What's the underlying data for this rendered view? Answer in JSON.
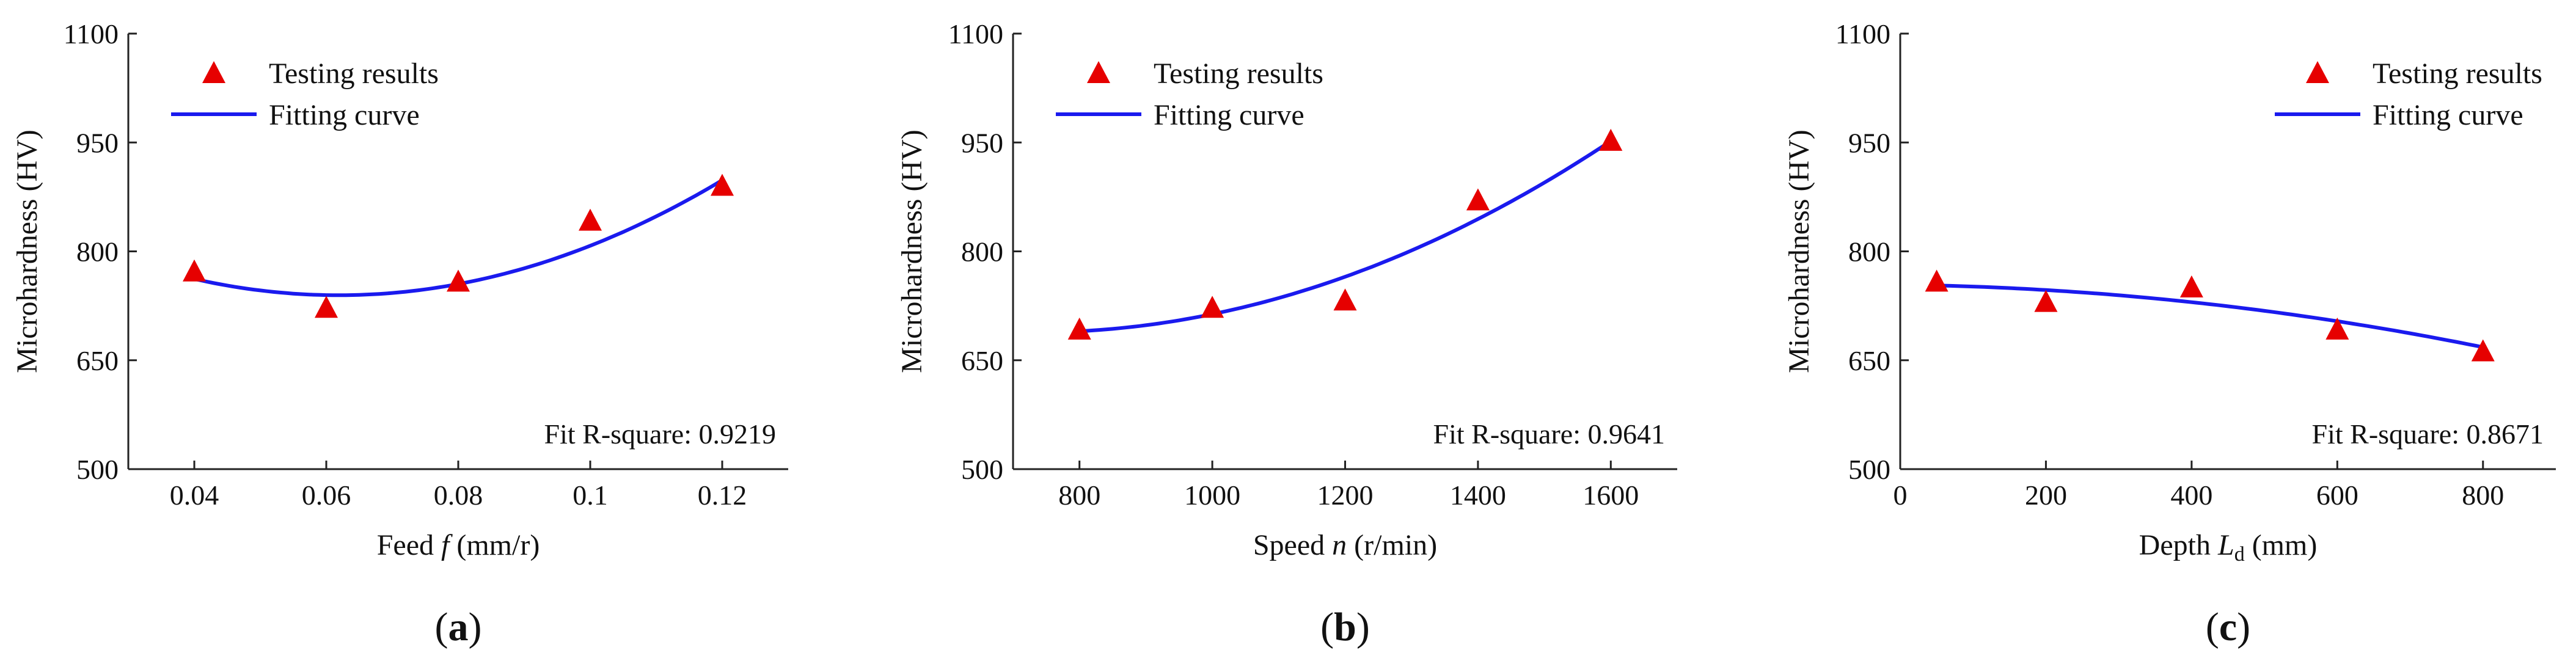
{
  "colors": {
    "marker": "#e60000",
    "curve": "#1a1aee"
  },
  "chart_data": [
    {
      "type": "scatter",
      "panel_label": "a",
      "ylabel": "Microhardness (HV)",
      "xlabel_prefix": "Feed ",
      "xlabel_var": "f",
      "xlabel_sub": "",
      "xlabel_suffix": " (mm/r)",
      "xlim": [
        0.03,
        0.13
      ],
      "ylim": [
        500,
        1100
      ],
      "xticks": [
        0.04,
        0.06,
        0.08,
        0.1,
        0.12
      ],
      "xtick_labels": [
        "0.04",
        "0.06",
        "0.08",
        "0.1",
        "0.12"
      ],
      "yticks": [
        500,
        650,
        800,
        950,
        1100
      ],
      "ytick_labels": [
        "500",
        "650",
        "800",
        "950",
        "1100"
      ],
      "legend": {
        "position": "top-left",
        "marker_label": "Testing results",
        "line_label": "Fitting curve"
      },
      "fit_text": "Fit R-square: 0.9219",
      "series": [
        {
          "name": "Testing results",
          "x": [
            0.04,
            0.06,
            0.08,
            0.1,
            0.12
          ],
          "y": [
            772,
            722,
            758,
            842,
            890
          ]
        },
        {
          "name": "Fitting curve",
          "quadratic_through": {
            "x": [
              0.04,
              0.08,
              0.12
            ],
            "y": [
              762,
              755,
              898
            ]
          }
        }
      ]
    },
    {
      "type": "scatter",
      "panel_label": "b",
      "ylabel": "Microhardness (HV)",
      "xlabel_prefix": "Speed ",
      "xlabel_var": "n",
      "xlabel_sub": "",
      "xlabel_suffix": " (r/min)",
      "xlim": [
        700,
        1700
      ],
      "ylim": [
        500,
        1100
      ],
      "xticks": [
        800,
        1000,
        1200,
        1400,
        1600
      ],
      "xtick_labels": [
        "800",
        "1000",
        "1200",
        "1400",
        "1600"
      ],
      "yticks": [
        500,
        650,
        800,
        950,
        1100
      ],
      "ytick_labels": [
        "500",
        "650",
        "800",
        "950",
        "1100"
      ],
      "legend": {
        "position": "top-left",
        "marker_label": "Testing results",
        "line_label": "Fitting curve"
      },
      "fit_text": "Fit R-square: 0.9641",
      "series": [
        {
          "name": "Testing results",
          "x": [
            800,
            1000,
            1200,
            1400,
            1600
          ],
          "y": [
            692,
            722,
            732,
            870,
            952
          ]
        },
        {
          "name": "Fitting curve",
          "quadratic_through": {
            "x": [
              800,
              1200,
              1600
            ],
            "y": [
              690,
              765,
              952
            ]
          }
        }
      ]
    },
    {
      "type": "scatter",
      "panel_label": "c",
      "ylabel": "Microhardness (HV)",
      "xlabel_prefix": "Depth ",
      "xlabel_var": "L",
      "xlabel_sub": "d",
      "xlabel_suffix": " (mm)",
      "xlim": [
        0,
        900
      ],
      "ylim": [
        500,
        1100
      ],
      "xticks": [
        0,
        200,
        400,
        600,
        800
      ],
      "xtick_labels": [
        "0",
        "200",
        "400",
        "600",
        "800"
      ],
      "yticks": [
        500,
        650,
        800,
        950,
        1100
      ],
      "ytick_labels": [
        "500",
        "650",
        "800",
        "950",
        "1100"
      ],
      "legend": {
        "position": "top-right",
        "marker_label": "Testing results",
        "line_label": "Fitting curve"
      },
      "fit_text": "Fit R-square: 0.8671",
      "series": [
        {
          "name": "Testing results",
          "x": [
            50,
            200,
            400,
            600,
            800
          ],
          "y": [
            758,
            730,
            750,
            692,
            662
          ]
        },
        {
          "name": "Fitting curve",
          "quadratic_through": {
            "x": [
              50,
              400,
              800
            ],
            "y": [
              753,
              730,
              668
            ]
          }
        }
      ]
    }
  ]
}
